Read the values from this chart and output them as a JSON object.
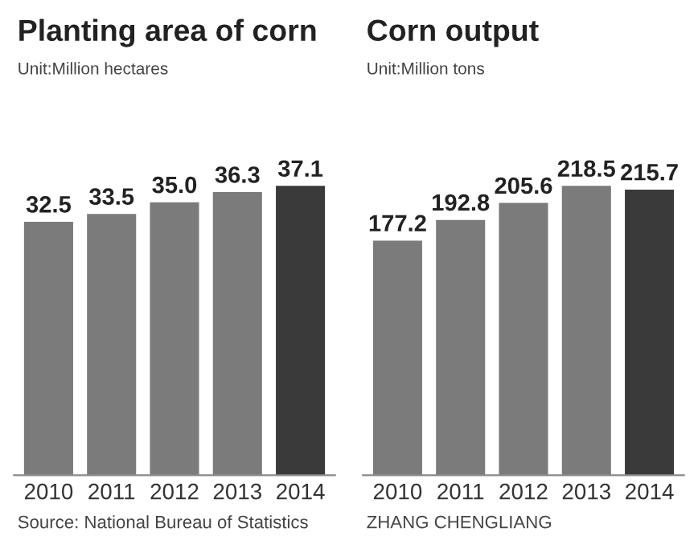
{
  "chart_data": [
    {
      "type": "bar",
      "title": "Planting area of corn",
      "subtitle": "Unit:Million hectares",
      "categories": [
        "2010",
        "2011",
        "2012",
        "2013",
        "2014"
      ],
      "values": [
        32.5,
        33.5,
        35.0,
        36.3,
        37.1
      ],
      "colors": [
        "#7b7b7b",
        "#7b7b7b",
        "#7b7b7b",
        "#7b7b7b",
        "#3a3a3a"
      ],
      "value_labels": [
        "32.5",
        "33.5",
        "35.0",
        "36.3",
        "37.1"
      ],
      "grid": false,
      "legend": false,
      "tick_labels": "x",
      "annotations": [
        "Source: National Bureau of Statistics"
      ]
    },
    {
      "type": "bar",
      "title": "Corn output",
      "subtitle": "Unit:Million tons",
      "categories": [
        "2010",
        "2011",
        "2012",
        "2013",
        "2014"
      ],
      "values": [
        177.2,
        192.8,
        205.6,
        218.5,
        215.7
      ],
      "colors": [
        "#7b7b7b",
        "#7b7b7b",
        "#7b7b7b",
        "#7b7b7b",
        "#3a3a3a"
      ],
      "value_labels": [
        "177.2",
        "192.8",
        "205.6",
        "218.5",
        "215.7"
      ],
      "grid": false,
      "legend": false,
      "tick_labels": "x",
      "annotations": [
        "ZHANG CHENGLIANG"
      ]
    }
  ]
}
